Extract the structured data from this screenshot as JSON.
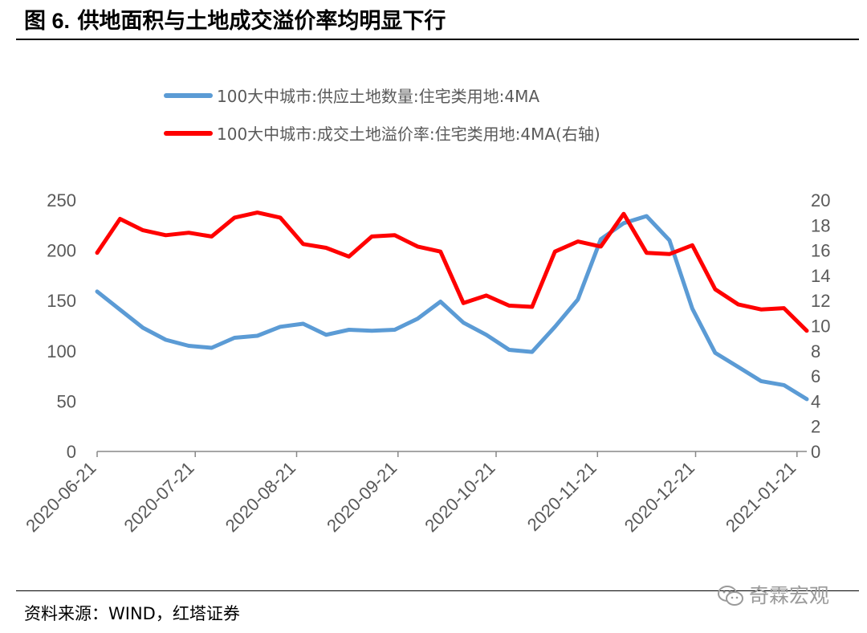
{
  "header": {
    "figure_no": "图 6.",
    "title": "供地面积与土地成交溢价率均明显下行"
  },
  "footer": {
    "source": "资料来源：WIND，红塔证券",
    "watermark": "奇霖宏观"
  },
  "colors": {
    "supply": "#5B9BD5",
    "premium": "#FF0000",
    "axis": "#888888",
    "text": "#595959"
  },
  "chart_data": {
    "type": "line",
    "x": [
      "2020-06-21",
      "2020-06-28",
      "2020-07-05",
      "2020-07-12",
      "2020-07-19",
      "2020-07-26",
      "2020-08-02",
      "2020-08-09",
      "2020-08-16",
      "2020-08-23",
      "2020-08-30",
      "2020-09-06",
      "2020-09-13",
      "2020-09-20",
      "2020-09-27",
      "2020-10-04",
      "2020-10-11",
      "2020-10-18",
      "2020-10-25",
      "2020-11-01",
      "2020-11-08",
      "2020-11-15",
      "2020-11-22",
      "2020-11-29",
      "2020-12-06",
      "2020-12-13",
      "2020-12-20",
      "2020-12-27",
      "2021-01-03",
      "2021-01-10",
      "2021-01-17",
      "2021-01-24"
    ],
    "x_tick_labels": [
      "2020-06-21",
      "2020-07-21",
      "2020-08-21",
      "2020-09-21",
      "2020-10-21",
      "2020-11-21",
      "2020-12-21",
      "2021-01-21"
    ],
    "series": [
      {
        "name": "100大中城市:供应土地数量:住宅类用地:4MA",
        "axis": "left",
        "values": [
          159,
          141,
          123,
          111,
          105,
          103,
          113,
          115,
          124,
          127,
          116,
          121,
          120,
          121,
          132,
          149,
          128,
          116,
          101,
          99,
          124,
          151,
          211,
          227,
          234,
          210,
          142,
          98,
          84,
          70,
          66,
          52
        ]
      },
      {
        "name": "100大中城市:成交土地溢价率:住宅类用地:4MA(右轴)",
        "axis": "right",
        "values": [
          15.8,
          18.5,
          17.6,
          17.2,
          17.4,
          17.1,
          18.6,
          19.0,
          18.6,
          16.5,
          16.2,
          15.5,
          17.1,
          17.2,
          16.3,
          15.9,
          11.8,
          12.4,
          11.6,
          11.5,
          15.9,
          16.7,
          16.3,
          18.9,
          15.8,
          15.7,
          16.4,
          12.9,
          11.7,
          11.3,
          11.4,
          9.6
        ]
      }
    ],
    "y_left": {
      "min": 0,
      "max": 250,
      "ticks": [
        0,
        50,
        100,
        150,
        200,
        250
      ]
    },
    "y_right": {
      "min": 0,
      "max": 20,
      "ticks": [
        0,
        2,
        4,
        6,
        8,
        10,
        12,
        14,
        16,
        18,
        20
      ]
    },
    "legend": "top"
  }
}
